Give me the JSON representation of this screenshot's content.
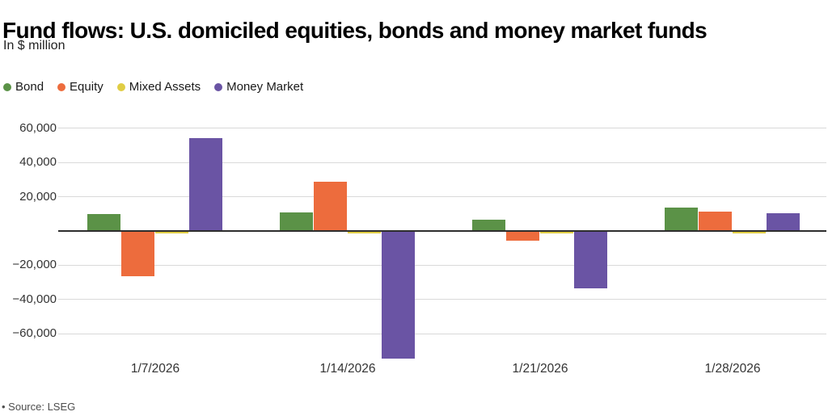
{
  "header": {
    "title": "Fund flows: U.S. domiciled equities, bonds and money market funds",
    "subtitle": "In $ million"
  },
  "legend": [
    {
      "label": "Bond",
      "color": "#5b9247"
    },
    {
      "label": "Equity",
      "color": "#ed6c3d"
    },
    {
      "label": "Mixed Assets",
      "color": "#e0cd44"
    },
    {
      "label": "Money Market",
      "color": "#6a54a4"
    }
  ],
  "chart_data": {
    "type": "bar",
    "title": "Fund flows: U.S. domiciled equities, bonds and money market funds",
    "subtitle": "In $ million",
    "categories": [
      "1/7/2026",
      "1/14/2026",
      "1/21/2026",
      "1/28/2026"
    ],
    "series": [
      {
        "name": "Bond",
        "color": "#5b9247",
        "values": [
          9200,
          10400,
          6100,
          13200
        ]
      },
      {
        "name": "Equity",
        "color": "#ed6c3d",
        "values": [
          -25900,
          28300,
          -5200,
          10800
        ]
      },
      {
        "name": "Mixed Assets",
        "color": "#e0cd44",
        "values": [
          -500,
          -400,
          -400,
          -400
        ]
      },
      {
        "name": "Money Market",
        "color": "#6a54a4",
        "values": [
          53800,
          -74000,
          -33000,
          9900
        ]
      }
    ],
    "ylim": [
      -76000,
      62000
    ],
    "yticks": [
      60000,
      40000,
      20000,
      -20000,
      -40000,
      -60000
    ],
    "ytick_labels": [
      "60,000",
      "40,000",
      "20,000",
      "−20,000",
      "−40,000",
      "−60,000"
    ],
    "xlabel": "",
    "ylabel": "",
    "grid": true,
    "legend_position": "top-left",
    "zero_line": true
  },
  "footer": {
    "source": "• Source: LSEG"
  },
  "colors": {
    "background": "#ffffff",
    "gridline": "#d9d9d9",
    "zero_line": "#2d2d2d",
    "axis_text": "#333333",
    "title_text": "#000000"
  }
}
